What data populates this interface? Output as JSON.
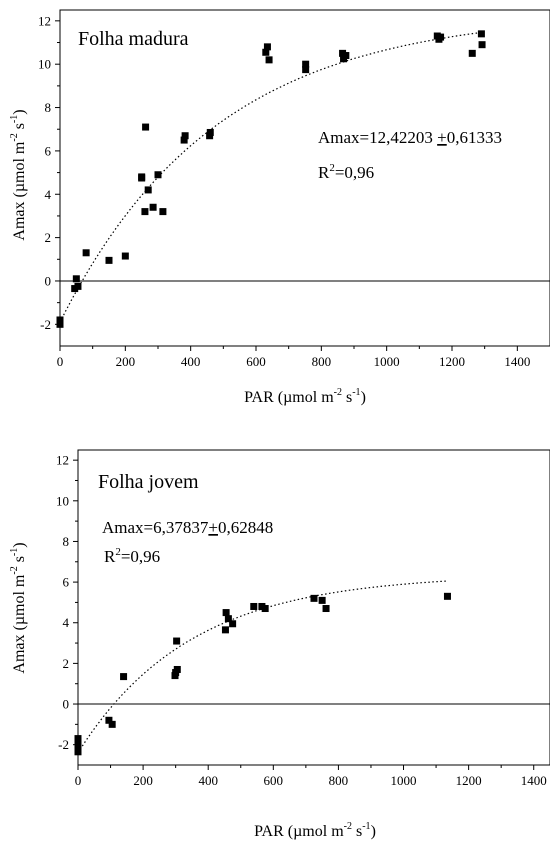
{
  "chart_data": [
    {
      "type": "scatter",
      "panel_title": "Folha madura",
      "xlabel": {
        "base": "PAR (µmol m",
        "sup1": "-2",
        "mid": " s",
        "sup2": "-1",
        "end": ")"
      },
      "ylabel": {
        "base": "Amax  (µmol m",
        "sup1": "-2",
        "mid": " s",
        "sup2": "-1",
        "end": ")"
      },
      "xlim": [
        0,
        1500
      ],
      "ylim": [
        -3,
        12.5
      ],
      "xticks": [
        0,
        200,
        400,
        600,
        800,
        1000,
        1200,
        1400
      ],
      "xtick_labels": [
        "0",
        "200",
        "400",
        "600",
        "800",
        "1000",
        "1200",
        "1400"
      ],
      "yticks": [
        -2,
        0,
        2,
        4,
        6,
        8,
        10,
        12
      ],
      "ytick_labels": [
        "-2",
        "0",
        "2",
        "4",
        "6",
        "8",
        "10",
        "12"
      ],
      "zero_line": true,
      "equation": {
        "text": "Amax=12,42203 ",
        "pm": "+",
        "rest": "0,61333"
      },
      "r2": {
        "r": "R",
        "sup": "2",
        "rest": "=0,96"
      },
      "fit_curve": {
        "amax": 12.42,
        "k": 0.0021,
        "x0": 0,
        "y0": -1.9,
        "xmax": 1290
      },
      "points": [
        {
          "x": 0,
          "y": -1.8
        },
        {
          "x": 0,
          "y": -2.0
        },
        {
          "x": 50,
          "y": 0.1
        },
        {
          "x": 45,
          "y": -0.35
        },
        {
          "x": 55,
          "y": -0.25
        },
        {
          "x": 80,
          "y": 1.3
        },
        {
          "x": 150,
          "y": 0.95
        },
        {
          "x": 200,
          "y": 1.15
        },
        {
          "x": 250,
          "y": 4.75
        },
        {
          "x": 250,
          "y": 4.8
        },
        {
          "x": 262,
          "y": 7.1
        },
        {
          "x": 260,
          "y": 3.2
        },
        {
          "x": 270,
          "y": 4.2
        },
        {
          "x": 285,
          "y": 3.4
        },
        {
          "x": 300,
          "y": 4.9
        },
        {
          "x": 315,
          "y": 3.2
        },
        {
          "x": 380,
          "y": 6.5
        },
        {
          "x": 383,
          "y": 6.7
        },
        {
          "x": 458,
          "y": 6.7
        },
        {
          "x": 460,
          "y": 6.85
        },
        {
          "x": 630,
          "y": 10.55
        },
        {
          "x": 635,
          "y": 10.8
        },
        {
          "x": 640,
          "y": 10.2
        },
        {
          "x": 752,
          "y": 9.75
        },
        {
          "x": 752,
          "y": 10.0
        },
        {
          "x": 865,
          "y": 10.5
        },
        {
          "x": 868,
          "y": 10.25
        },
        {
          "x": 875,
          "y": 10.4
        },
        {
          "x": 1155,
          "y": 11.3
        },
        {
          "x": 1160,
          "y": 11.15
        },
        {
          "x": 1165,
          "y": 11.25
        },
        {
          "x": 1262,
          "y": 10.5
        },
        {
          "x": 1290,
          "y": 11.4
        },
        {
          "x": 1292,
          "y": 10.9
        }
      ]
    },
    {
      "type": "scatter",
      "panel_title": "Folha jovem",
      "xlabel": {
        "base": "PAR (µmol m",
        "sup1": "-2",
        "mid": " s",
        "sup2": "-1",
        "end": ")"
      },
      "ylabel": {
        "base": "Amax (µmol m",
        "sup1": "-2",
        "mid": " s",
        "sup2": "-1",
        "end": ")"
      },
      "xlim": [
        0,
        1450
      ],
      "ylim": [
        -3,
        12.5
      ],
      "xticks": [
        0,
        200,
        400,
        600,
        800,
        1000,
        1200,
        1400
      ],
      "xtick_labels": [
        "0",
        "200",
        "400",
        "600",
        "800",
        "1000",
        "1200",
        "1400"
      ],
      "yticks": [
        -2,
        0,
        2,
        4,
        6,
        8,
        10,
        12
      ],
      "ytick_labels": [
        "-2",
        "0",
        "2",
        "4",
        "6",
        "8",
        "10",
        "12"
      ],
      "zero_line": true,
      "equation": {
        "text": "Amax=6,37837",
        "pm": "+",
        "rest": "0,62848"
      },
      "r2": {
        "r": "R",
        "sup": "2",
        "rest": "=0,96"
      },
      "fit_curve": {
        "amax": 6.38,
        "k": 0.0029,
        "x0": 0,
        "y0": -2.4,
        "xmax": 1130
      },
      "points": [
        {
          "x": 0,
          "y": -1.7
        },
        {
          "x": 0,
          "y": -1.9
        },
        {
          "x": 0,
          "y": -2.15
        },
        {
          "x": 0,
          "y": -2.35
        },
        {
          "x": 95,
          "y": -0.8
        },
        {
          "x": 105,
          "y": -1.0
        },
        {
          "x": 140,
          "y": 1.35
        },
        {
          "x": 298,
          "y": 1.4
        },
        {
          "x": 300,
          "y": 1.55
        },
        {
          "x": 303,
          "y": 3.1
        },
        {
          "x": 305,
          "y": 1.7
        },
        {
          "x": 453,
          "y": 3.65
        },
        {
          "x": 455,
          "y": 4.5
        },
        {
          "x": 462,
          "y": 4.2
        },
        {
          "x": 475,
          "y": 3.95
        },
        {
          "x": 540,
          "y": 4.8
        },
        {
          "x": 565,
          "y": 4.8
        },
        {
          "x": 575,
          "y": 4.7
        },
        {
          "x": 725,
          "y": 5.2
        },
        {
          "x": 750,
          "y": 5.1
        },
        {
          "x": 762,
          "y": 4.7
        },
        {
          "x": 1135,
          "y": 5.3
        }
      ]
    }
  ]
}
